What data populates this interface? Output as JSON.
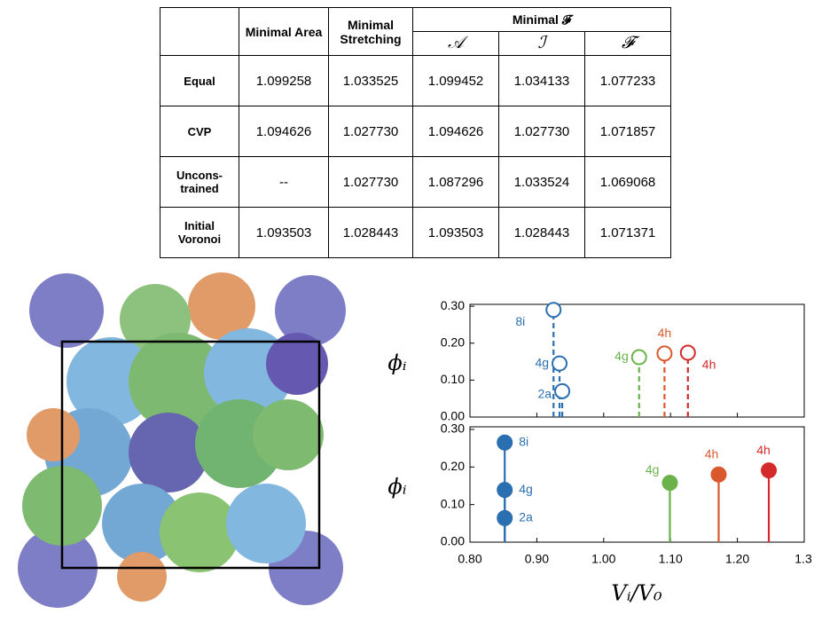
{
  "table": {
    "columns": [
      "Minimal Area",
      "Minimal Stretching"
    ],
    "group": "Minimal 𝓕",
    "subcolumns": [
      "𝒜",
      "ℐ",
      "𝓕"
    ],
    "rows": [
      {
        "label": "Equal",
        "values": [
          "1.099258",
          "1.033525",
          "1.099452",
          "1.034133",
          "1.077233"
        ]
      },
      {
        "label": "CVP",
        "values": [
          "1.094626",
          "1.027730",
          "1.094626",
          "1.027730",
          "1.071857"
        ]
      },
      {
        "label": "Uncons-trained",
        "values": [
          "--",
          "1.027730",
          "1.087296",
          "1.033524",
          "1.069068"
        ]
      },
      {
        "label": "Initial Voronoi",
        "values": [
          "1.093503",
          "1.028443",
          "1.093503",
          "1.028443",
          "1.071371"
        ]
      }
    ]
  },
  "chart_data": [
    {
      "type": "stem",
      "marker": "open",
      "line_style": "dashed",
      "ylabel": "ϕᵢ",
      "x": [
        0.925,
        0.934,
        0.938,
        1.053,
        1.091,
        1.126
      ],
      "values": [
        0.29,
        0.145,
        0.07,
        0.162,
        0.172,
        0.174
      ],
      "labels": [
        "8i",
        "4g",
        "2a",
        "4g",
        "4h",
        "4h"
      ],
      "colors": [
        "#2a6fb0",
        "#2a6fb0",
        "#2a6fb0",
        "#6ab34a",
        "#d9582c",
        "#d42a2a"
      ],
      "xlim": [
        0.8,
        1.3
      ],
      "xticks": [
        0.8,
        0.9,
        1.0,
        1.1,
        1.2,
        1.3
      ],
      "ylim": [
        0,
        0.305
      ],
      "yticks": [
        {
          "value": 0,
          "label": "0.00"
        },
        {
          "value": 0.1,
          "label": "0.10"
        },
        {
          "value": 0.2,
          "label": "0.20"
        },
        {
          "value": 0.3,
          "label": "0.30"
        }
      ]
    },
    {
      "type": "stem",
      "marker": "filled",
      "line_style": "solid",
      "ylabel": "ϕᵢ",
      "xlabel": "Vᵢ/V₀",
      "x": [
        0.852,
        0.852,
        0.852,
        1.099,
        1.172,
        1.247
      ],
      "values": [
        0.265,
        0.139,
        0.064,
        0.158,
        0.18,
        0.191
      ],
      "labels": [
        "8i",
        "4g",
        "2a",
        "4g",
        "4h",
        "4h"
      ],
      "colors": [
        "#2a6fb0",
        "#2a6fb0",
        "#2a6fb0",
        "#6ab34a",
        "#d9582c",
        "#d42a2a"
      ],
      "xlim": [
        0.8,
        1.3
      ],
      "xticks": [
        {
          "value": 0.8,
          "label": "0.80"
        },
        {
          "value": 0.9,
          "label": "0.90"
        },
        {
          "value": 1.0,
          "label": "1.00"
        },
        {
          "value": 1.1,
          "label": "1.10"
        },
        {
          "value": 1.2,
          "label": "1.20"
        },
        {
          "value": 1.3,
          "label": "1.3"
        }
      ],
      "ylim": [
        0,
        0.307
      ],
      "yticks": [
        {
          "value": 0,
          "label": "0.00"
        },
        {
          "value": 0.1,
          "label": "0.10"
        },
        {
          "value": 0.2,
          "label": "0.20"
        },
        {
          "value": 0.3,
          "label": "0.30"
        }
      ]
    }
  ]
}
